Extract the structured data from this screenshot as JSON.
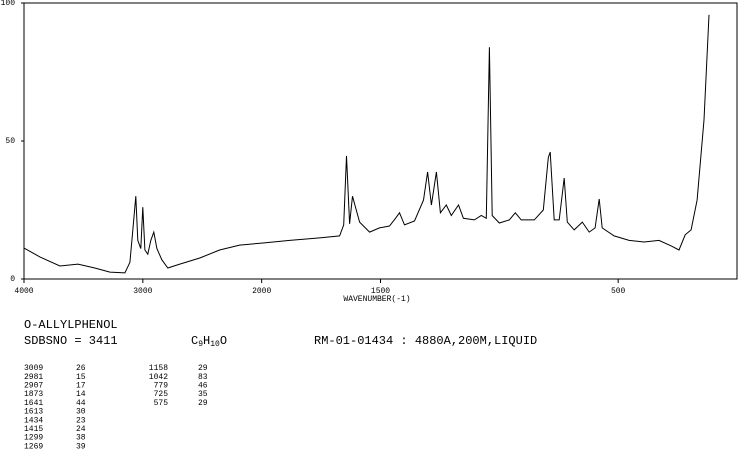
{
  "chart_data": {
    "type": "line",
    "x_label": "WAVENUMBER(-1)",
    "xlim": [
      4000,
      0
    ],
    "x_scale_break": 2000,
    "xticks": [
      4000,
      3000,
      2000,
      1500,
      500
    ],
    "ylim": [
      0,
      100
    ],
    "yticks": [
      0,
      50,
      100
    ],
    "color": "#000000",
    "x": [
      4000,
      3866,
      3698,
      3546,
      3404,
      3277,
      3151,
      3109,
      3084,
      3059,
      3042,
      3017,
      3000,
      2983,
      2958,
      2933,
      2908,
      2882,
      2840,
      2790,
      2689,
      2521,
      2354,
      2186,
      2000,
      1882,
      1756,
      1672,
      1655,
      1643,
      1630,
      1618,
      1605,
      1588,
      1546,
      1504,
      1462,
      1437,
      1420,
      1399,
      1357,
      1319,
      1302,
      1286,
      1265,
      1248,
      1223,
      1202,
      1172,
      1151,
      1105,
      1076,
      1055,
      1042,
      1030,
      1000,
      958,
      933,
      908,
      853,
      815,
      794,
      786,
      769,
      748,
      727,
      714,
      685,
      651,
      622,
      597,
      580,
      567,
      517,
      454,
      391,
      328,
      277,
      244,
      218,
      193,
      168,
      139,
      118
    ],
    "values": [
      11.2,
      8,
      4.7,
      5.4,
      4,
      2.5,
      2.2,
      6,
      18,
      30,
      14,
      11,
      26,
      10.5,
      9,
      14,
      17,
      11,
      7,
      4,
      5.4,
      7.6,
      10.5,
      12.3,
      13,
      14,
      14.9,
      15.6,
      19.6,
      44.6,
      20,
      30,
      26,
      20.6,
      17,
      18.5,
      19.2,
      22,
      24,
      19.6,
      21,
      28.6,
      38.8,
      26.8,
      38.8,
      24,
      26.8,
      23,
      26.8,
      22,
      21.4,
      23,
      22,
      84,
      23,
      20.3,
      21.4,
      24,
      21.4,
      21.4,
      25,
      44,
      46,
      21.4,
      21.4,
      36.6,
      20.6,
      17.8,
      20.6,
      17,
      18.5,
      29,
      18.5,
      15.6,
      14,
      13.4,
      14,
      12,
      10.5,
      16,
      17.8,
      28.6,
      57.6,
      95.7
    ]
  },
  "sample": {
    "name": "O-ALLYLPHENOL",
    "sdbs": "SDBSNO = 3411",
    "formula": [
      "C",
      "9",
      "H",
      "10",
      "O"
    ],
    "conditions": "RM-01-01434 : 4880A,200M,LIQUID",
    "peaks_left": [
      [
        3009,
        26
      ],
      [
        2981,
        15
      ],
      [
        2907,
        17
      ],
      [
        1873,
        14
      ],
      [
        1641,
        44
      ],
      [
        1613,
        30
      ],
      [
        1434,
        23
      ],
      [
        1415,
        24
      ],
      [
        1299,
        38
      ],
      [
        1269,
        39
      ]
    ],
    "peaks_right": [
      [
        1158,
        29
      ],
      [
        1042,
        83
      ],
      [
        779,
        46
      ],
      [
        725,
        35
      ],
      [
        575,
        29
      ]
    ]
  }
}
